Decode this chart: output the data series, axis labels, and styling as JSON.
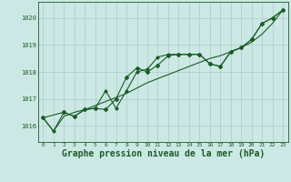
{
  "background_color": "#cce8e4",
  "grid_color": "#aaccca",
  "line_color": "#1a5c28",
  "xlabel": "Graphe pression niveau de la mer (hPa)",
  "xlabel_fontsize": 7,
  "xlim": [
    -0.5,
    23.5
  ],
  "ylim": [
    1015.4,
    1020.6
  ],
  "yticks": [
    1016,
    1017,
    1018,
    1019,
    1020
  ],
  "xticks": [
    0,
    1,
    2,
    3,
    4,
    5,
    6,
    7,
    8,
    9,
    10,
    11,
    12,
    13,
    14,
    15,
    16,
    17,
    18,
    19,
    20,
    21,
    22,
    23
  ],
  "series1_x": [
    0,
    1,
    2,
    3,
    4,
    5,
    6,
    7,
    8,
    9,
    10,
    11,
    12,
    13,
    14,
    15,
    16,
    17,
    18,
    19,
    20,
    21,
    22,
    23
  ],
  "series1_y": [
    1016.3,
    1015.8,
    1016.35,
    1016.5,
    1016.6,
    1016.75,
    1016.9,
    1017.05,
    1017.2,
    1017.4,
    1017.6,
    1017.75,
    1017.9,
    1018.05,
    1018.2,
    1018.35,
    1018.5,
    1018.6,
    1018.75,
    1018.9,
    1019.1,
    1019.4,
    1019.8,
    1020.3
  ],
  "series2_x": [
    0,
    2,
    3,
    4,
    5,
    6,
    7,
    8,
    9,
    10,
    11,
    12,
    13,
    14,
    15,
    16,
    17,
    18,
    19,
    20,
    21,
    22,
    23
  ],
  "series2_y": [
    1016.3,
    1016.5,
    1016.35,
    1016.6,
    1016.65,
    1016.6,
    1017.0,
    1017.8,
    1018.15,
    1018.0,
    1018.25,
    1018.6,
    1018.65,
    1018.65,
    1018.65,
    1018.3,
    1018.2,
    1018.75,
    1018.9,
    1019.2,
    1019.8,
    1020.0,
    1020.3
  ],
  "series3_x": [
    0,
    1,
    2,
    3,
    4,
    5,
    6,
    7,
    8,
    9,
    10,
    11,
    12,
    13,
    14,
    15,
    16,
    17,
    18,
    19,
    20,
    21,
    22,
    23
  ],
  "series3_y": [
    1016.3,
    1015.8,
    1016.5,
    1016.35,
    1016.6,
    1016.65,
    1017.3,
    1016.65,
    1017.3,
    1018.0,
    1018.1,
    1018.55,
    1018.65,
    1018.65,
    1018.65,
    1018.65,
    1018.3,
    1018.2,
    1018.75,
    1018.9,
    1019.2,
    1019.8,
    1020.0,
    1020.3
  ]
}
